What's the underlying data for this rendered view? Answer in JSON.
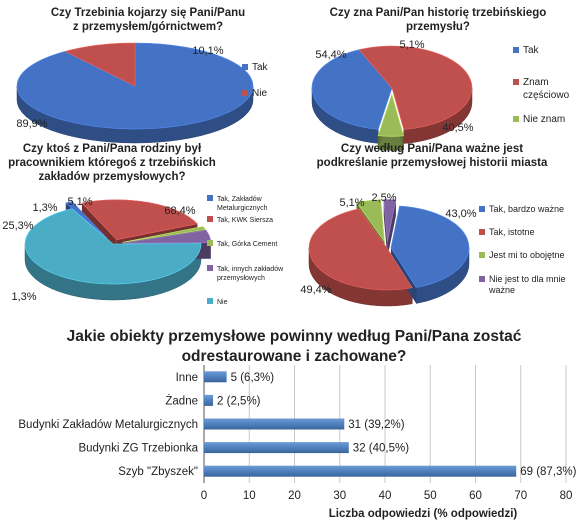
{
  "chart_data": [
    {
      "type": "pie",
      "title": [
        "Czy Trzebinia kojarzy się Pani/Panu",
        "z  przemysłem/górnictwem?"
      ],
      "slices": [
        {
          "label": "Tak",
          "value": 89.9,
          "text": "89,9%",
          "color": "#4472C4"
        },
        {
          "label": "Nie",
          "value": 10.1,
          "text": "10,1%",
          "color": "#C0504D"
        }
      ]
    },
    {
      "type": "pie",
      "title": [
        "Czy zna Pani/Pan historię trzebińskiego",
        "przemysłu?"
      ],
      "slices": [
        {
          "label": "Tak",
          "value": 40.5,
          "text": "40,5%",
          "color": "#4472C4"
        },
        {
          "label": "Znam częściowo",
          "legend": [
            "Znam",
            "częściowo"
          ],
          "value": 54.4,
          "text": "54,4%",
          "color": "#C0504D"
        },
        {
          "label": "Nie znam",
          "value": 5.1,
          "text": "5,1%",
          "color": "#9BBB59"
        }
      ]
    },
    {
      "type": "pie",
      "title": [
        "Czy ktoś z Pani/Pana rodziny był",
        "pracownikiem któregoś z trzebińskich",
        "zakładów przemysłowych?"
      ],
      "slices": [
        {
          "label": "Tak, Zakładów Metalurgicznych",
          "legend": [
            "Tak, Zakładów",
            "Metalurgicznych"
          ],
          "value": 1.3,
          "text": "1,3%",
          "color": "#4472C4"
        },
        {
          "label": "Tak, KWK Siersza",
          "legend": [
            "Tak, KWK Siersza"
          ],
          "value": 25.3,
          "text": "25,3%",
          "color": "#C0504D"
        },
        {
          "label": "Tak, Górka Cement",
          "legend": [
            "Tak, Górka Cement"
          ],
          "value": 1.3,
          "text": "1,3%",
          "color": "#9BBB59"
        },
        {
          "label": "Tak, innych zakładów przemysłowych",
          "legend": [
            "Tak, innych zakładów",
            "przemysłowych"
          ],
          "value": 5.1,
          "text": "5,1%",
          "color": "#8064A2"
        },
        {
          "label": "Nie",
          "legend": [
            "Nie"
          ],
          "value": 68.4,
          "text": "68,4%",
          "color": "#4BACC6"
        }
      ]
    },
    {
      "type": "pie",
      "title": [
        "Czy według Pani/Pana ważne jest",
        "podkreślanie przemysłowej historii miasta"
      ],
      "slices": [
        {
          "label": "Tak, bardzo ważne",
          "legend": [
            "Tak, bardzo ważne"
          ],
          "value": 43.0,
          "text": "43,0%",
          "color": "#4472C4"
        },
        {
          "label": "Tak, istotne",
          "legend": [
            "Tak, istotne"
          ],
          "value": 49.4,
          "text": "49,4%",
          "color": "#C0504D"
        },
        {
          "label": "Jest mi to obojętne",
          "legend": [
            "Jest mi to obojętne"
          ],
          "value": 5.1,
          "text": "5,1%",
          "color": "#9BBB59"
        },
        {
          "label": "Nie jest to dla mnie ważne",
          "legend": [
            "Nie jest to dla mnie",
            "ważne"
          ],
          "value": 2.5,
          "text": "2,5%",
          "color": "#8064A2"
        }
      ]
    },
    {
      "type": "bar",
      "orientation": "horizontal",
      "title": [
        "Jakie obiekty przemysłowe powinny według Pani/Pana zostać",
        "odrestaurowane i zachowane?"
      ],
      "xlabel": "Liczba odpowiedzi (% odpowiedzi)",
      "xlim": [
        0,
        80
      ],
      "xticks": [
        "0",
        "10",
        "20",
        "30",
        "40",
        "50",
        "60",
        "70",
        "80"
      ],
      "categories": [
        "Inne",
        "Żadne",
        "Budynki Zakładów Metalurgicznych",
        "Budynki ZG Trzebionka",
        "Szyb \"Zbyszek\""
      ],
      "values": [
        5,
        2,
        31,
        32,
        69
      ],
      "labels": [
        "5 (6,3%)",
        "2 (2,5%)",
        "31 (39,2%)",
        "32 (40,5%)",
        "69 (87,3%)"
      ],
      "color": "#4F81BD"
    }
  ]
}
